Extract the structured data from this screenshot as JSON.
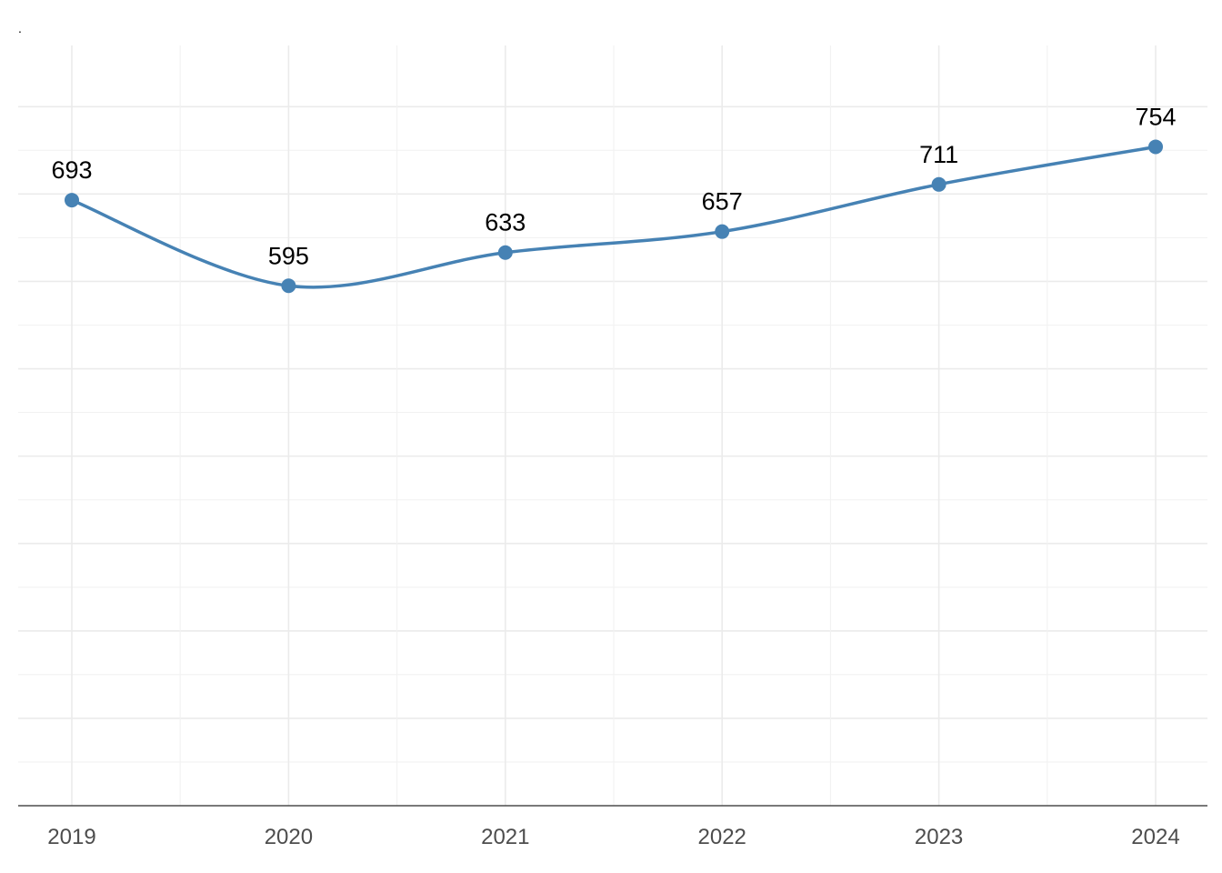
{
  "chart_data": {
    "type": "line",
    "title": ".",
    "xlabel": "",
    "ylabel": "",
    "categories": [
      "2019",
      "2020",
      "2021",
      "2022",
      "2023",
      "2024"
    ],
    "series": [
      {
        "values": [
          693,
          595,
          633,
          657,
          711,
          754
        ],
        "color": "#4682b4"
      }
    ],
    "data_labels": [
      "693",
      "595",
      "633",
      "657",
      "711",
      "754"
    ],
    "ylim": [
      0,
      870
    ],
    "grid": true,
    "smooth": true,
    "legend": "none"
  }
}
